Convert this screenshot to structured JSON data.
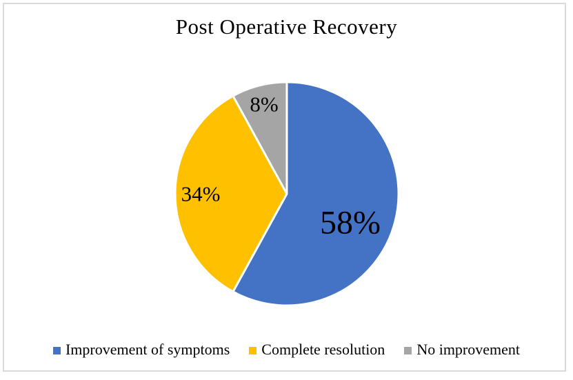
{
  "chart_data": {
    "type": "pie",
    "title": "Post Operative Recovery",
    "start_angle_deg": 0,
    "direction": "clockwise",
    "legend_position": "bottom",
    "slice_border_color": "#FFFFFF",
    "frame_border_color": "#D9D9D9",
    "slices": [
      {
        "label": "Improvement of symptoms",
        "value": 58,
        "display": "58%",
        "color": "#4472C4"
      },
      {
        "label": "Complete resolution",
        "value": 34,
        "display": "34%",
        "color": "#FFC000"
      },
      {
        "label": "No improvement",
        "value": 8,
        "display": "8%",
        "color": "#A5A5A5"
      }
    ]
  }
}
